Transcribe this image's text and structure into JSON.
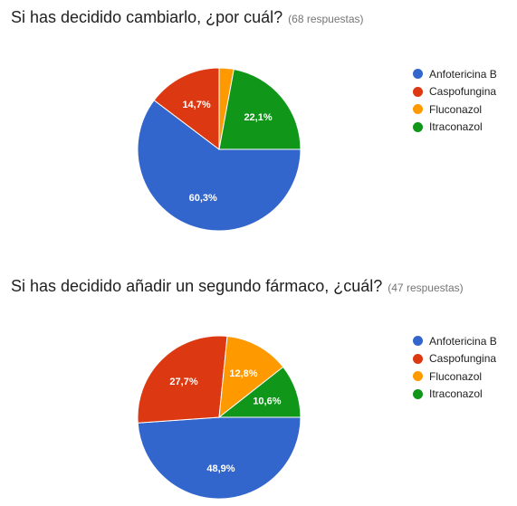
{
  "chart_data": [
    {
      "type": "pie",
      "title": "Si has decidido cambiarlo, ¿por cuál?",
      "subtitle": "(68 respuestas)",
      "categories": [
        "Anfotericina B",
        "Caspofungina",
        "Fluconazol",
        "Itraconazol"
      ],
      "values": [
        60.3,
        14.7,
        2.9,
        22.1
      ],
      "labels": [
        "60,3%",
        "14,7%",
        "",
        "22,1%"
      ],
      "colors": [
        "#3366cc",
        "#dc3912",
        "#ff9900",
        "#109618"
      ],
      "legend": "right"
    },
    {
      "type": "pie",
      "title": "Si has decidido añadir un segundo fármaco, ¿cuál?",
      "subtitle": "(47 respuestas)",
      "categories": [
        "Anfotericina B",
        "Caspofungina",
        "Fluconazol",
        "Itraconazol"
      ],
      "values": [
        48.9,
        27.7,
        12.8,
        10.6
      ],
      "labels": [
        "48,9%",
        "27,7%",
        "12,8%",
        "10,6%"
      ],
      "colors": [
        "#3366cc",
        "#dc3912",
        "#ff9900",
        "#109618"
      ],
      "legend": "right"
    }
  ]
}
